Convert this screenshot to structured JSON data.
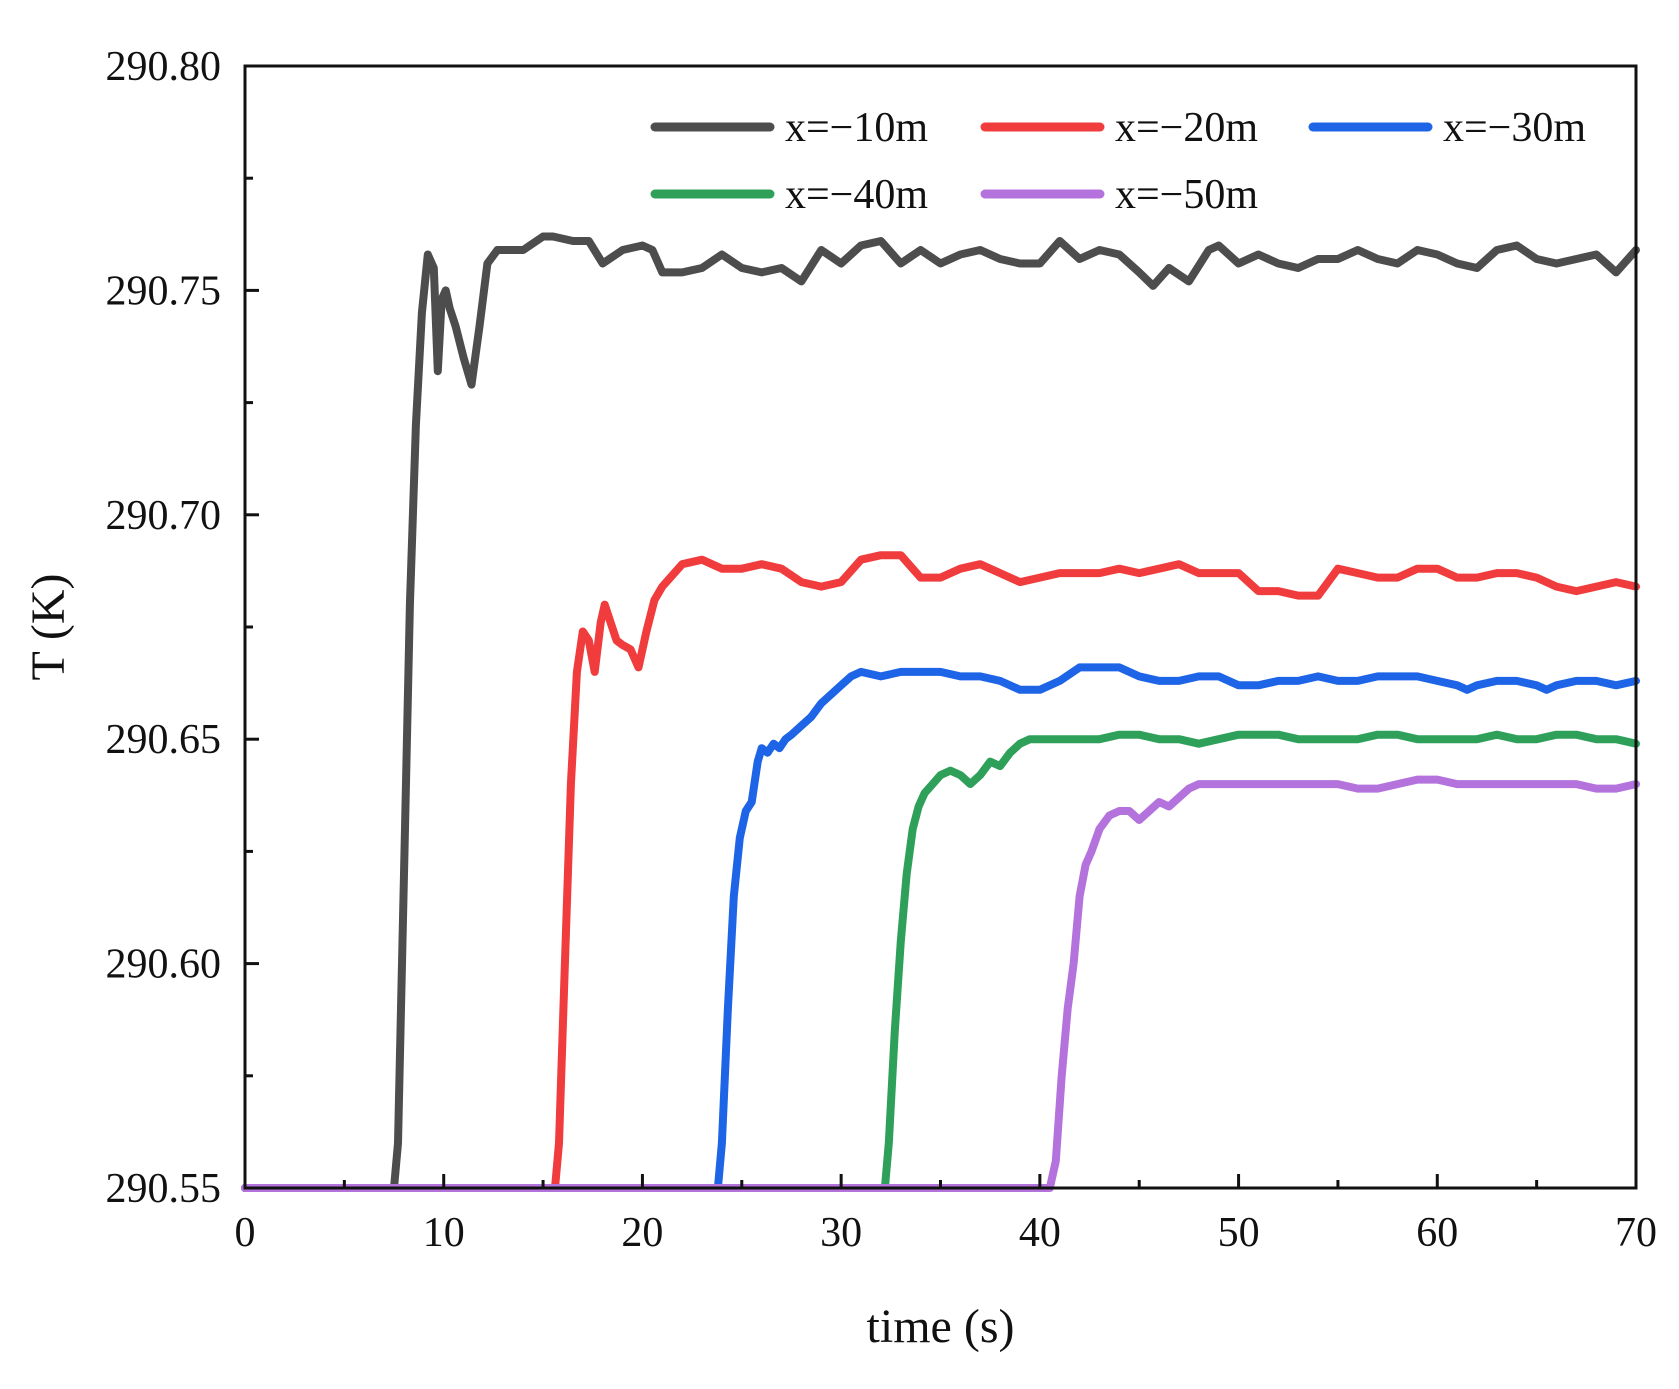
{
  "chart_data": {
    "type": "line",
    "title": "",
    "xlabel": "time (s)",
    "ylabel": "T (K)",
    "xlim": [
      0,
      70
    ],
    "ylim": [
      290.55,
      290.8
    ],
    "xticks": [
      0,
      10,
      20,
      30,
      40,
      50,
      60,
      70
    ],
    "xtick_labels": [
      "0",
      "10",
      "20",
      "30",
      "40",
      "50",
      "60",
      "70"
    ],
    "yticks": [
      290.55,
      290.6,
      290.65,
      290.7,
      290.75,
      290.8
    ],
    "ytick_labels": [
      "290.55",
      "290.60",
      "290.65",
      "290.70",
      "290.75",
      "290.80"
    ],
    "grid": false,
    "legend_position": "top-right",
    "series": [
      {
        "name": "x=−10m",
        "color": "#4d4d4d",
        "x": [
          0,
          7.5,
          7.7,
          8.0,
          8.3,
          8.6,
          8.9,
          9.2,
          9.5,
          9.7,
          9.9,
          10.1,
          10.3,
          10.6,
          11.0,
          11.4,
          11.8,
          12.2,
          12.7,
          13.2,
          14.0,
          15.0,
          15.5,
          16.5,
          17.3,
          18.0,
          19.0,
          20.0,
          20.5,
          21.0,
          22.0,
          23.0,
          24.0,
          25.0,
          26.0,
          27.0,
          28.0,
          29.0,
          30.0,
          31.0,
          32.0,
          33.0,
          34.0,
          35.0,
          36.0,
          37.0,
          38.0,
          39.0,
          40.0,
          41.0,
          42.0,
          43.0,
          44.0,
          45.0,
          45.7,
          46.5,
          47.5,
          48.5,
          49.0,
          50.0,
          51.0,
          52.0,
          53.0,
          54.0,
          55.0,
          56.0,
          57.0,
          58.0,
          59.0,
          60.0,
          61.0,
          62.0,
          63.0,
          64.0,
          65.0,
          66.0,
          67.0,
          68.0,
          69.0,
          70.0
        ],
        "y": [
          290.55,
          290.55,
          290.56,
          290.62,
          290.68,
          290.72,
          290.745,
          290.758,
          290.755,
          290.732,
          290.748,
          290.75,
          290.746,
          290.742,
          290.735,
          290.729,
          290.742,
          290.756,
          290.759,
          290.759,
          290.759,
          290.762,
          290.762,
          290.761,
          290.761,
          290.756,
          290.759,
          290.76,
          290.759,
          290.754,
          290.754,
          290.755,
          290.758,
          290.755,
          290.754,
          290.755,
          290.752,
          290.759,
          290.756,
          290.76,
          290.761,
          290.756,
          290.759,
          290.756,
          290.758,
          290.759,
          290.757,
          290.756,
          290.756,
          290.761,
          290.757,
          290.759,
          290.758,
          290.754,
          290.751,
          290.755,
          290.752,
          290.759,
          290.76,
          290.756,
          290.758,
          290.756,
          290.755,
          290.757,
          290.757,
          290.759,
          290.757,
          290.756,
          290.759,
          290.758,
          290.756,
          290.755,
          290.759,
          290.76,
          290.757,
          290.756,
          290.757,
          290.758,
          290.754,
          290.759
        ]
      },
      {
        "name": "x=−20m",
        "color": "#f03c3c",
        "x": [
          0,
          15.6,
          15.8,
          16.1,
          16.4,
          16.7,
          17.0,
          17.3,
          17.6,
          17.9,
          18.1,
          18.4,
          18.7,
          19.0,
          19.4,
          19.8,
          20.2,
          20.6,
          21.0,
          22.0,
          23.0,
          24.0,
          25.0,
          26.0,
          27.0,
          28.0,
          29.0,
          30.0,
          31.0,
          32.0,
          33.0,
          34.0,
          35.0,
          36.0,
          37.0,
          38.0,
          39.0,
          40.0,
          41.0,
          42.0,
          43.0,
          44.0,
          45.0,
          46.0,
          47.0,
          48.0,
          49.0,
          50.0,
          51.0,
          52.0,
          53.0,
          54.0,
          55.0,
          56.0,
          57.0,
          58.0,
          59.0,
          60.0,
          61.0,
          62.0,
          63.0,
          64.0,
          65.0,
          66.0,
          67.0,
          68.0,
          69.0,
          70.0
        ],
        "y": [
          290.55,
          290.55,
          290.56,
          290.6,
          290.64,
          290.665,
          290.674,
          290.672,
          290.665,
          290.676,
          290.68,
          290.676,
          290.672,
          290.671,
          290.67,
          290.666,
          290.674,
          290.681,
          290.684,
          290.689,
          290.69,
          290.688,
          290.688,
          290.689,
          290.688,
          290.685,
          290.684,
          290.685,
          290.69,
          290.691,
          290.691,
          290.686,
          290.686,
          290.688,
          290.689,
          290.687,
          290.685,
          290.686,
          290.687,
          290.687,
          290.687,
          290.688,
          290.687,
          290.688,
          290.689,
          290.687,
          290.687,
          290.687,
          290.683,
          290.683,
          290.682,
          290.682,
          290.688,
          290.687,
          290.686,
          290.686,
          290.688,
          290.688,
          290.686,
          290.686,
          290.687,
          290.687,
          290.686,
          290.684,
          290.683,
          290.684,
          290.685,
          290.684
        ]
      },
      {
        "name": "x=−30m",
        "color": "#1e64e6",
        "x": [
          0,
          23.8,
          24.0,
          24.3,
          24.6,
          24.9,
          25.2,
          25.5,
          25.8,
          26.0,
          26.3,
          26.6,
          26.9,
          27.2,
          27.5,
          28.0,
          28.5,
          29.0,
          29.5,
          30.0,
          30.5,
          31.0,
          32.0,
          33.0,
          34.0,
          35.0,
          36.0,
          37.0,
          38.0,
          39.0,
          40.0,
          41.0,
          42.0,
          43.0,
          44.0,
          45.0,
          46.0,
          47.0,
          48.0,
          49.0,
          50.0,
          51.0,
          52.0,
          53.0,
          54.0,
          55.0,
          56.0,
          57.0,
          58.0,
          59.0,
          60.0,
          61.0,
          61.5,
          62.0,
          63.0,
          64.0,
          65.0,
          65.5,
          66.0,
          67.0,
          68.0,
          69.0,
          70.0
        ],
        "y": [
          290.55,
          290.55,
          290.56,
          290.59,
          290.615,
          290.628,
          290.634,
          290.636,
          290.645,
          290.648,
          290.647,
          290.649,
          290.648,
          290.65,
          290.651,
          290.653,
          290.655,
          290.658,
          290.66,
          290.662,
          290.664,
          290.665,
          290.664,
          290.665,
          290.665,
          290.665,
          290.664,
          290.664,
          290.663,
          290.661,
          290.661,
          290.663,
          290.666,
          290.666,
          290.666,
          290.664,
          290.663,
          290.663,
          290.664,
          290.664,
          290.662,
          290.662,
          290.663,
          290.663,
          290.664,
          290.663,
          290.663,
          290.664,
          290.664,
          290.664,
          290.663,
          290.662,
          290.661,
          290.662,
          290.663,
          290.663,
          290.662,
          290.661,
          290.662,
          290.663,
          290.663,
          290.662,
          290.663
        ]
      },
      {
        "name": "x=−40m",
        "color": "#2ea05a",
        "x": [
          0,
          32.2,
          32.4,
          32.7,
          33.0,
          33.3,
          33.6,
          33.9,
          34.2,
          34.6,
          35.0,
          35.5,
          36.0,
          36.5,
          37.0,
          37.5,
          38.0,
          38.5,
          39.0,
          39.5,
          40.0,
          41.0,
          42.0,
          43.0,
          44.0,
          45.0,
          46.0,
          47.0,
          48.0,
          49.0,
          50.0,
          51.0,
          52.0,
          53.0,
          54.0,
          55.0,
          56.0,
          57.0,
          58.0,
          59.0,
          60.0,
          61.0,
          62.0,
          63.0,
          64.0,
          65.0,
          66.0,
          67.0,
          68.0,
          69.0,
          70.0
        ],
        "y": [
          290.55,
          290.55,
          290.56,
          290.585,
          290.605,
          290.62,
          290.63,
          290.635,
          290.638,
          290.64,
          290.642,
          290.643,
          290.642,
          290.64,
          290.642,
          290.645,
          290.644,
          290.647,
          290.649,
          290.65,
          290.65,
          290.65,
          290.65,
          290.65,
          290.651,
          290.651,
          290.65,
          290.65,
          290.649,
          290.65,
          290.651,
          290.651,
          290.651,
          290.65,
          290.65,
          290.65,
          290.65,
          290.651,
          290.651,
          290.65,
          290.65,
          290.65,
          290.65,
          290.651,
          290.65,
          290.65,
          290.651,
          290.651,
          290.65,
          290.65,
          290.649
        ]
      },
      {
        "name": "x=−50m",
        "color": "#b473dc",
        "x": [
          0,
          40.5,
          40.8,
          41.1,
          41.4,
          41.7,
          42.0,
          42.3,
          42.6,
          43.0,
          43.5,
          44.0,
          44.5,
          45.0,
          45.5,
          46.0,
          46.5,
          47.0,
          47.5,
          48.0,
          48.5,
          49.0,
          50.0,
          51.0,
          52.0,
          53.0,
          54.0,
          55.0,
          56.0,
          57.0,
          58.0,
          59.0,
          60.0,
          61.0,
          62.0,
          63.0,
          64.0,
          65.0,
          66.0,
          67.0,
          68.0,
          69.0,
          70.0
        ],
        "y": [
          290.55,
          290.55,
          290.556,
          290.575,
          290.59,
          290.6,
          290.615,
          290.622,
          290.625,
          290.63,
          290.633,
          290.634,
          290.634,
          290.632,
          290.634,
          290.636,
          290.635,
          290.637,
          290.639,
          290.64,
          290.64,
          290.64,
          290.64,
          290.64,
          290.64,
          290.64,
          290.64,
          290.64,
          290.639,
          290.639,
          290.64,
          290.641,
          290.641,
          290.64,
          290.64,
          290.64,
          290.64,
          290.64,
          290.64,
          290.64,
          290.639,
          290.639,
          290.64
        ]
      }
    ]
  }
}
